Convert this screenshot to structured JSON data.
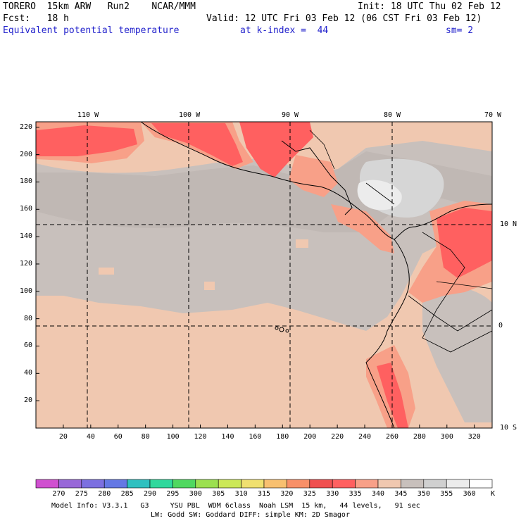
{
  "header": {
    "model": "TORERO  15km ARW   Run2    NCAR/MMM",
    "init": "Init: 18 UTC Thu 02 Feb 12",
    "fcst": "Fcst:   18 h",
    "valid": "Valid: 12 UTC Fri 03 Feb 12 (06 CST Fri 03 Feb 12)",
    "field": "Equivalent potential temperature",
    "level": "at k-index =  44",
    "smoothing": "sm= 2"
  },
  "axes": {
    "x_ticks": [
      "20",
      "40",
      "60",
      "80",
      "100",
      "120",
      "140",
      "160",
      "180",
      "200",
      "220",
      "240",
      "260",
      "280",
      "300",
      "320"
    ],
    "y_ticks": [
      "220",
      "200",
      "180",
      "160",
      "140",
      "120",
      "100",
      "80",
      "60",
      "40",
      "20"
    ],
    "lon_labels": [
      "110 W",
      "100 W",
      "90 W",
      "80 W",
      "70 W"
    ],
    "lat_labels": [
      "10 N",
      "0",
      "10 S"
    ]
  },
  "colorbar": {
    "labels": [
      "270",
      "275",
      "280",
      "285",
      "290",
      "295",
      "300",
      "305",
      "310",
      "315",
      "320",
      "325",
      "330",
      "335",
      "340",
      "345",
      "350",
      "355",
      "360"
    ],
    "unit": "K",
    "colors": [
      "#d050d0",
      "#9868d8",
      "#7c70e0",
      "#6478e4",
      "#30c0c0",
      "#30d89c",
      "#50d860",
      "#9ce050",
      "#cce858",
      "#f0e070",
      "#f8c070",
      "#f89068",
      "#f05050",
      "#ff6060",
      "#f8a088",
      "#f0c8b0",
      "#c8c0bc",
      "#d0d0d0",
      "#ececec",
      "#ffffff"
    ]
  },
  "footer": {
    "line1": "Model Info: V3.3.1   G3     YSU PBL  WDM 6class  Noah LSM  15 km,   44 levels,   91 sec",
    "line2": "LW: Godd SW: Goddard DIFF: simple KM: 2D Smagor"
  }
}
